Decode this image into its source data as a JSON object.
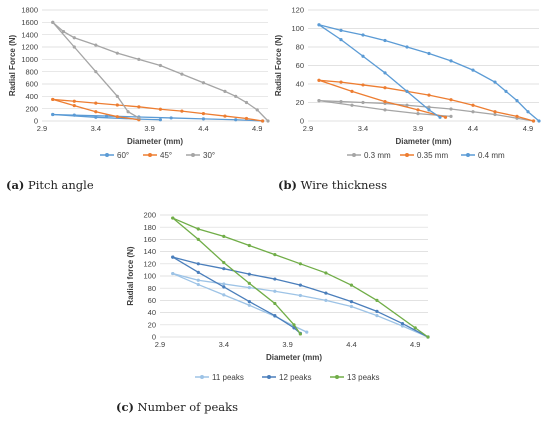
{
  "chart_data": [
    {
      "id": "a",
      "type": "line",
      "caption_letter": "(a)",
      "caption_text": "Pitch angle",
      "xlabel": "Diameter (mm)",
      "ylabel": "Radial Force (N)",
      "xlim": [
        2.9,
        5.0
      ],
      "ylim": [
        0,
        1800
      ],
      "xticks": [
        2.9,
        3.4,
        3.9,
        4.4,
        4.9
      ],
      "yticks": [
        0,
        200,
        400,
        600,
        800,
        1000,
        1200,
        1400,
        1600,
        1800
      ],
      "grid": "horizontal",
      "legend_position": "bottom",
      "series": [
        {
          "name": "60°",
          "color": "#5b9bd5",
          "loading": [
            [
              4.95,
              0
            ],
            [
              4.7,
              20
            ],
            [
              4.4,
              35
            ],
            [
              4.1,
              50
            ],
            [
              3.8,
              65
            ],
            [
              3.5,
              80
            ],
            [
              3.2,
              95
            ],
            [
              3.0,
              105
            ]
          ],
          "unloading": [
            [
              3.0,
              105
            ],
            [
              3.4,
              60
            ],
            [
              3.8,
              30
            ],
            [
              4.0,
              20
            ]
          ]
        },
        {
          "name": "45°",
          "color": "#ed7d31",
          "loading": [
            [
              4.95,
              0
            ],
            [
              4.8,
              40
            ],
            [
              4.6,
              80
            ],
            [
              4.4,
              120
            ],
            [
              4.2,
              160
            ],
            [
              4.0,
              190
            ],
            [
              3.8,
              230
            ],
            [
              3.6,
              260
            ],
            [
              3.4,
              290
            ],
            [
              3.2,
              320
            ],
            [
              3.0,
              350
            ]
          ],
          "unloading": [
            [
              3.0,
              350
            ],
            [
              3.2,
              250
            ],
            [
              3.4,
              150
            ],
            [
              3.6,
              70
            ],
            [
              3.8,
              20
            ]
          ]
        },
        {
          "name": "30°",
          "color": "#a5a5a5",
          "loading": [
            [
              5.0,
              0
            ],
            [
              4.9,
              180
            ],
            [
              4.8,
              300
            ],
            [
              4.7,
              400
            ],
            [
              4.6,
              480
            ],
            [
              4.4,
              620
            ],
            [
              4.2,
              760
            ],
            [
              4.0,
              900
            ],
            [
              3.8,
              1000
            ],
            [
              3.6,
              1100
            ],
            [
              3.4,
              1230
            ],
            [
              3.2,
              1350
            ],
            [
              3.1,
              1450
            ],
            [
              3.0,
              1600
            ]
          ],
          "unloading": [
            [
              3.0,
              1600
            ],
            [
              3.2,
              1200
            ],
            [
              3.4,
              800
            ],
            [
              3.6,
              400
            ],
            [
              3.7,
              150
            ],
            [
              3.8,
              50
            ]
          ]
        }
      ]
    },
    {
      "id": "b",
      "type": "line",
      "caption_letter": "(b)",
      "caption_text": "Wire thickness",
      "xlabel": "Diameter (mm)",
      "ylabel": "Radial Force (N)",
      "xlim": [
        2.9,
        5.0
      ],
      "ylim": [
        0,
        120
      ],
      "xticks": [
        2.9,
        3.4,
        3.9,
        4.4,
        4.9
      ],
      "yticks": [
        0,
        20,
        40,
        60,
        80,
        100,
        120
      ],
      "grid": "horizontal",
      "legend_position": "bottom",
      "series": [
        {
          "name": "0.3 mm",
          "color": "#a5a5a5",
          "loading": [
            [
              4.95,
              0
            ],
            [
              4.8,
              3
            ],
            [
              4.6,
              7
            ],
            [
              4.4,
              10
            ],
            [
              4.2,
              13
            ],
            [
              4.0,
              15
            ],
            [
              3.8,
              17
            ],
            [
              3.6,
              19
            ],
            [
              3.4,
              20
            ],
            [
              3.2,
              21
            ],
            [
              3.0,
              22
            ]
          ],
          "unloading": [
            [
              3.0,
              22
            ],
            [
              3.3,
              17
            ],
            [
              3.6,
              12
            ],
            [
              3.9,
              8
            ],
            [
              4.2,
              5
            ]
          ]
        },
        {
          "name": "0.35 mm",
          "color": "#ed7d31",
          "loading": [
            [
              4.95,
              0
            ],
            [
              4.8,
              5
            ],
            [
              4.6,
              10
            ],
            [
              4.4,
              17
            ],
            [
              4.2,
              23
            ],
            [
              4.0,
              28
            ],
            [
              3.8,
              32
            ],
            [
              3.6,
              36
            ],
            [
              3.4,
              39
            ],
            [
              3.2,
              42
            ],
            [
              3.0,
              44
            ]
          ],
          "unloading": [
            [
              3.0,
              44
            ],
            [
              3.3,
              32
            ],
            [
              3.6,
              21
            ],
            [
              3.9,
              12
            ],
            [
              4.15,
              4
            ]
          ]
        },
        {
          "name": "0.4 mm",
          "color": "#5b9bd5",
          "loading": [
            [
              5.0,
              0
            ],
            [
              4.9,
              10
            ],
            [
              4.8,
              22
            ],
            [
              4.7,
              32
            ],
            [
              4.6,
              42
            ],
            [
              4.4,
              55
            ],
            [
              4.2,
              65
            ],
            [
              4.0,
              73
            ],
            [
              3.8,
              80
            ],
            [
              3.6,
              87
            ],
            [
              3.4,
              93
            ],
            [
              3.2,
              98
            ],
            [
              3.0,
              104
            ]
          ],
          "unloading": [
            [
              3.0,
              104
            ],
            [
              3.2,
              88
            ],
            [
              3.4,
              70
            ],
            [
              3.6,
              52
            ],
            [
              3.8,
              32
            ],
            [
              4.0,
              12
            ],
            [
              4.1,
              4
            ]
          ]
        }
      ]
    },
    {
      "id": "c",
      "type": "line",
      "caption_letter": "(c)",
      "caption_text": "Number of peaks",
      "xlabel": "Diameter (mm)",
      "ylabel": "Radial force (N)",
      "xlim": [
        2.9,
        5.0
      ],
      "ylim": [
        0,
        200
      ],
      "xticks": [
        2.9,
        3.4,
        3.9,
        4.4,
        4.9
      ],
      "yticks": [
        0,
        20,
        40,
        60,
        80,
        100,
        120,
        140,
        160,
        180,
        200
      ],
      "grid": "horizontal",
      "legend_position": "bottom",
      "series": [
        {
          "name": "11 peaks",
          "color": "#9dc3e6",
          "loading": [
            [
              5.0,
              0
            ],
            [
              4.8,
              18
            ],
            [
              4.6,
              35
            ],
            [
              4.4,
              50
            ],
            [
              4.2,
              60
            ],
            [
              4.0,
              68
            ],
            [
              3.8,
              75
            ],
            [
              3.6,
              81
            ],
            [
              3.4,
              87
            ],
            [
              3.2,
              93
            ],
            [
              3.0,
              104
            ]
          ],
          "unloading": [
            [
              3.0,
              104
            ],
            [
              3.2,
              86
            ],
            [
              3.4,
              69
            ],
            [
              3.6,
              52
            ],
            [
              3.8,
              34
            ],
            [
              3.95,
              18
            ],
            [
              4.05,
              8
            ]
          ]
        },
        {
          "name": "12 peaks",
          "color": "#4a7ebb",
          "loading": [
            [
              5.0,
              0
            ],
            [
              4.8,
              22
            ],
            [
              4.6,
              42
            ],
            [
              4.4,
              58
            ],
            [
              4.2,
              72
            ],
            [
              4.0,
              85
            ],
            [
              3.8,
              95
            ],
            [
              3.6,
              103
            ],
            [
              3.4,
              112
            ],
            [
              3.2,
              120
            ],
            [
              3.0,
              131
            ]
          ],
          "unloading": [
            [
              3.0,
              131
            ],
            [
              3.2,
              106
            ],
            [
              3.4,
              82
            ],
            [
              3.6,
              58
            ],
            [
              3.8,
              35
            ],
            [
              3.95,
              15
            ],
            [
              4.0,
              6
            ]
          ]
        },
        {
          "name": "13 peaks",
          "color": "#70ad47",
          "loading": [
            [
              5.0,
              0
            ],
            [
              4.9,
              15
            ],
            [
              4.6,
              60
            ],
            [
              4.4,
              85
            ],
            [
              4.2,
              105
            ],
            [
              4.0,
              120
            ],
            [
              3.8,
              135
            ],
            [
              3.6,
              150
            ],
            [
              3.4,
              165
            ],
            [
              3.2,
              177
            ],
            [
              3.0,
              195
            ]
          ],
          "unloading": [
            [
              3.0,
              195
            ],
            [
              3.2,
              160
            ],
            [
              3.4,
              122
            ],
            [
              3.6,
              88
            ],
            [
              3.8,
              55
            ],
            [
              3.95,
              20
            ],
            [
              4.0,
              5
            ]
          ]
        }
      ]
    }
  ]
}
